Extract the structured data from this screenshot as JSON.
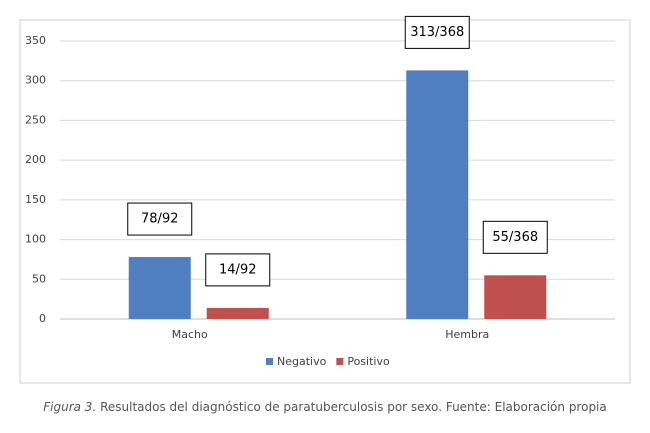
{
  "chart_data": {
    "type": "bar",
    "categories": [
      "Macho",
      "Hembra"
    ],
    "series": [
      {
        "name": "Negativo",
        "color": "#4f7fbf",
        "values": [
          78,
          313
        ],
        "value_labels": [
          "78/92",
          "313/368"
        ]
      },
      {
        "name": "Positivo",
        "color": "#c0504d",
        "values": [
          14,
          55
        ],
        "value_labels": [
          "14/92",
          "55/368"
        ]
      }
    ],
    "ylim": [
      0,
      350
    ],
    "yticks": [
      0,
      50,
      100,
      150,
      200,
      250,
      300,
      350
    ],
    "grid": true,
    "legend": "bottom"
  },
  "caption": {
    "label": "Figura 3.",
    "text": "Resultados del diagnóstico de paratuberculosis por sexo. Fuente: Elaboración propia"
  }
}
